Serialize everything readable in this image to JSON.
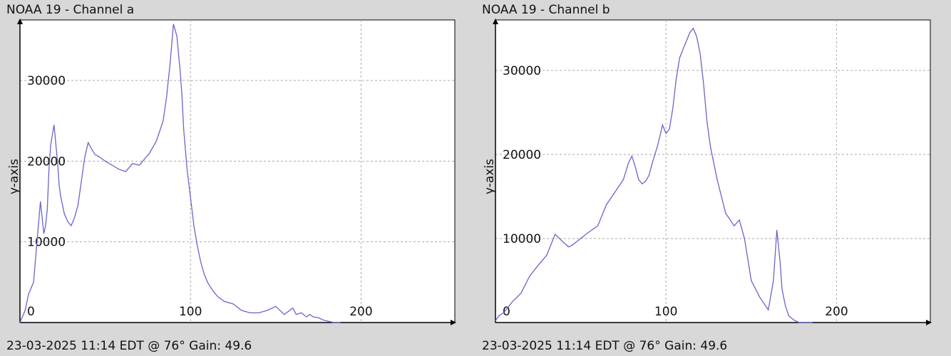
{
  "panels": [
    {
      "title": "NOAA 19 - Channel a",
      "ylabel": "y-axis",
      "footer": "23-03-2025 11:14 EDT @ 76° Gain: 49.6"
    },
    {
      "title": "NOAA 19 - Channel b",
      "ylabel": "y-axis",
      "footer": "23-03-2025 11:14 EDT @ 76° Gain: 49.6"
    }
  ],
  "colors": {
    "background": "#d8d8d8",
    "plot_background": "#ffffff",
    "line": "#6666cc",
    "grid": "#aaaaaa",
    "axis": "#000000"
  },
  "chart_data": [
    {
      "type": "line",
      "title": "NOAA 19 - Channel a",
      "xlabel": "",
      "ylabel": "y-axis",
      "xlim": [
        0,
        255
      ],
      "ylim": [
        0,
        37500
      ],
      "xticks": [
        0,
        100,
        200
      ],
      "yticks": [
        10000,
        20000,
        30000
      ],
      "grid": true,
      "series": [
        {
          "x": [
            0,
            3,
            5,
            8,
            10,
            12,
            14,
            15,
            16,
            17,
            18,
            20,
            22,
            23,
            24,
            26,
            28,
            30,
            32,
            34,
            36,
            38,
            40,
            42,
            44,
            46,
            48,
            50,
            54,
            58,
            62,
            66,
            70,
            72,
            74,
            76,
            80,
            84,
            86,
            88,
            90,
            92,
            94,
            95,
            96,
            98,
            100,
            102,
            104,
            106,
            108,
            110,
            112,
            114,
            116,
            120,
            125,
            130,
            135,
            140,
            145,
            150,
            155,
            160,
            162,
            165,
            168,
            170,
            172,
            175,
            178,
            180,
            182,
            184,
            186,
            188
          ],
          "values": [
            0,
            1500,
            3500,
            5000,
            10000,
            15000,
            11000,
            12000,
            14000,
            19000,
            22000,
            24500,
            20000,
            17000,
            15500,
            13500,
            12500,
            12000,
            13000,
            14500,
            17500,
            20500,
            22300,
            21500,
            20800,
            20600,
            20300,
            20000,
            19500,
            19000,
            18700,
            19700,
            19500,
            20000,
            20500,
            21000,
            22500,
            25000,
            28000,
            32000,
            37000,
            35500,
            31000,
            28000,
            24000,
            19000,
            15500,
            12000,
            9500,
            7500,
            6000,
            5000,
            4300,
            3700,
            3200,
            2600,
            2300,
            1500,
            1200,
            1200,
            1500,
            2000,
            1000,
            1800,
            1000,
            1200,
            700,
            1000,
            700,
            600,
            300,
            200,
            100,
            0,
            0,
            0
          ]
        }
      ]
    },
    {
      "type": "line",
      "title": "NOAA 19 - Channel b",
      "xlabel": "",
      "ylabel": "y-axis",
      "xlim": [
        0,
        255
      ],
      "ylim": [
        0,
        36000
      ],
      "xticks": [
        0,
        100,
        200
      ],
      "yticks": [
        10000,
        20000,
        30000
      ],
      "grid": true,
      "series": [
        {
          "x": [
            0,
            2,
            5,
            10,
            15,
            20,
            25,
            30,
            35,
            40,
            43,
            45,
            50,
            55,
            60,
            65,
            70,
            75,
            78,
            80,
            82,
            84,
            86,
            88,
            90,
            92,
            95,
            98,
            100,
            102,
            104,
            106,
            108,
            110,
            112,
            114,
            116,
            118,
            120,
            122,
            124,
            126,
            130,
            135,
            140,
            143,
            146,
            150,
            155,
            160,
            163,
            165,
            167,
            168,
            170,
            172,
            175,
            178,
            180,
            182,
            184,
            186
          ],
          "values": [
            200,
            800,
            1200,
            2500,
            3500,
            5500,
            6800,
            8000,
            10500,
            9500,
            9000,
            9200,
            10000,
            10800,
            11500,
            14000,
            15500,
            17000,
            19000,
            19800,
            18500,
            17000,
            16500,
            16800,
            17500,
            19000,
            21000,
            23500,
            22500,
            23000,
            25500,
            29000,
            31500,
            32500,
            33500,
            34500,
            35000,
            34000,
            32000,
            28500,
            24000,
            21000,
            17000,
            13000,
            11500,
            12200,
            10000,
            5000,
            3000,
            1500,
            5000,
            11000,
            7000,
            4000,
            2000,
            800,
            300,
            0,
            0,
            0,
            0,
            0
          ]
        }
      ]
    }
  ]
}
